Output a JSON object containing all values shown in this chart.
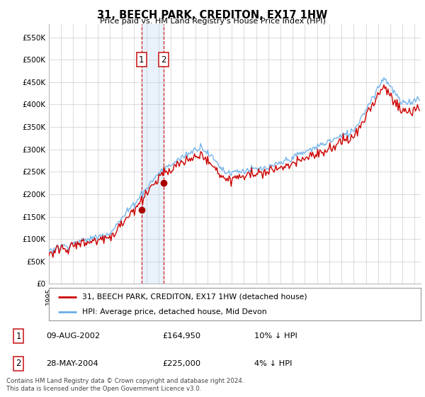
{
  "title": "31, BEECH PARK, CREDITON, EX17 1HW",
  "subtitle": "Price paid vs. HM Land Registry's House Price Index (HPI)",
  "ylabel_ticks": [
    "£0",
    "£50K",
    "£100K",
    "£150K",
    "£200K",
    "£250K",
    "£300K",
    "£350K",
    "£400K",
    "£450K",
    "£500K",
    "£550K"
  ],
  "ytick_values": [
    0,
    50000,
    100000,
    150000,
    200000,
    250000,
    300000,
    350000,
    400000,
    450000,
    500000,
    550000
  ],
  "ylim": [
    0,
    580000
  ],
  "xlim_start": 1995.0,
  "xlim_end": 2025.5,
  "sale1_date": 2002.6,
  "sale1_price": 164950,
  "sale1_label": "1",
  "sale2_date": 2004.4,
  "sale2_price": 225000,
  "sale2_label": "2",
  "legend_line1": "31, BEECH PARK, CREDITON, EX17 1HW (detached house)",
  "legend_line2": "HPI: Average price, detached house, Mid Devon",
  "table_row1": [
    "1",
    "09-AUG-2002",
    "£164,950",
    "10% ↓ HPI"
  ],
  "table_row2": [
    "2",
    "28-MAY-2004",
    "£225,000",
    "4% ↓ HPI"
  ],
  "footer": "Contains HM Land Registry data © Crown copyright and database right 2024.\nThis data is licensed under the Open Government Licence v3.0.",
  "hpi_color": "#6aaee8",
  "price_color": "#cc0000",
  "sale_marker_color": "#aa0000",
  "background_color": "#ffffff",
  "grid_color": "#cccccc",
  "label_box_color": "#cc2222",
  "shade_color": "#aaccee"
}
